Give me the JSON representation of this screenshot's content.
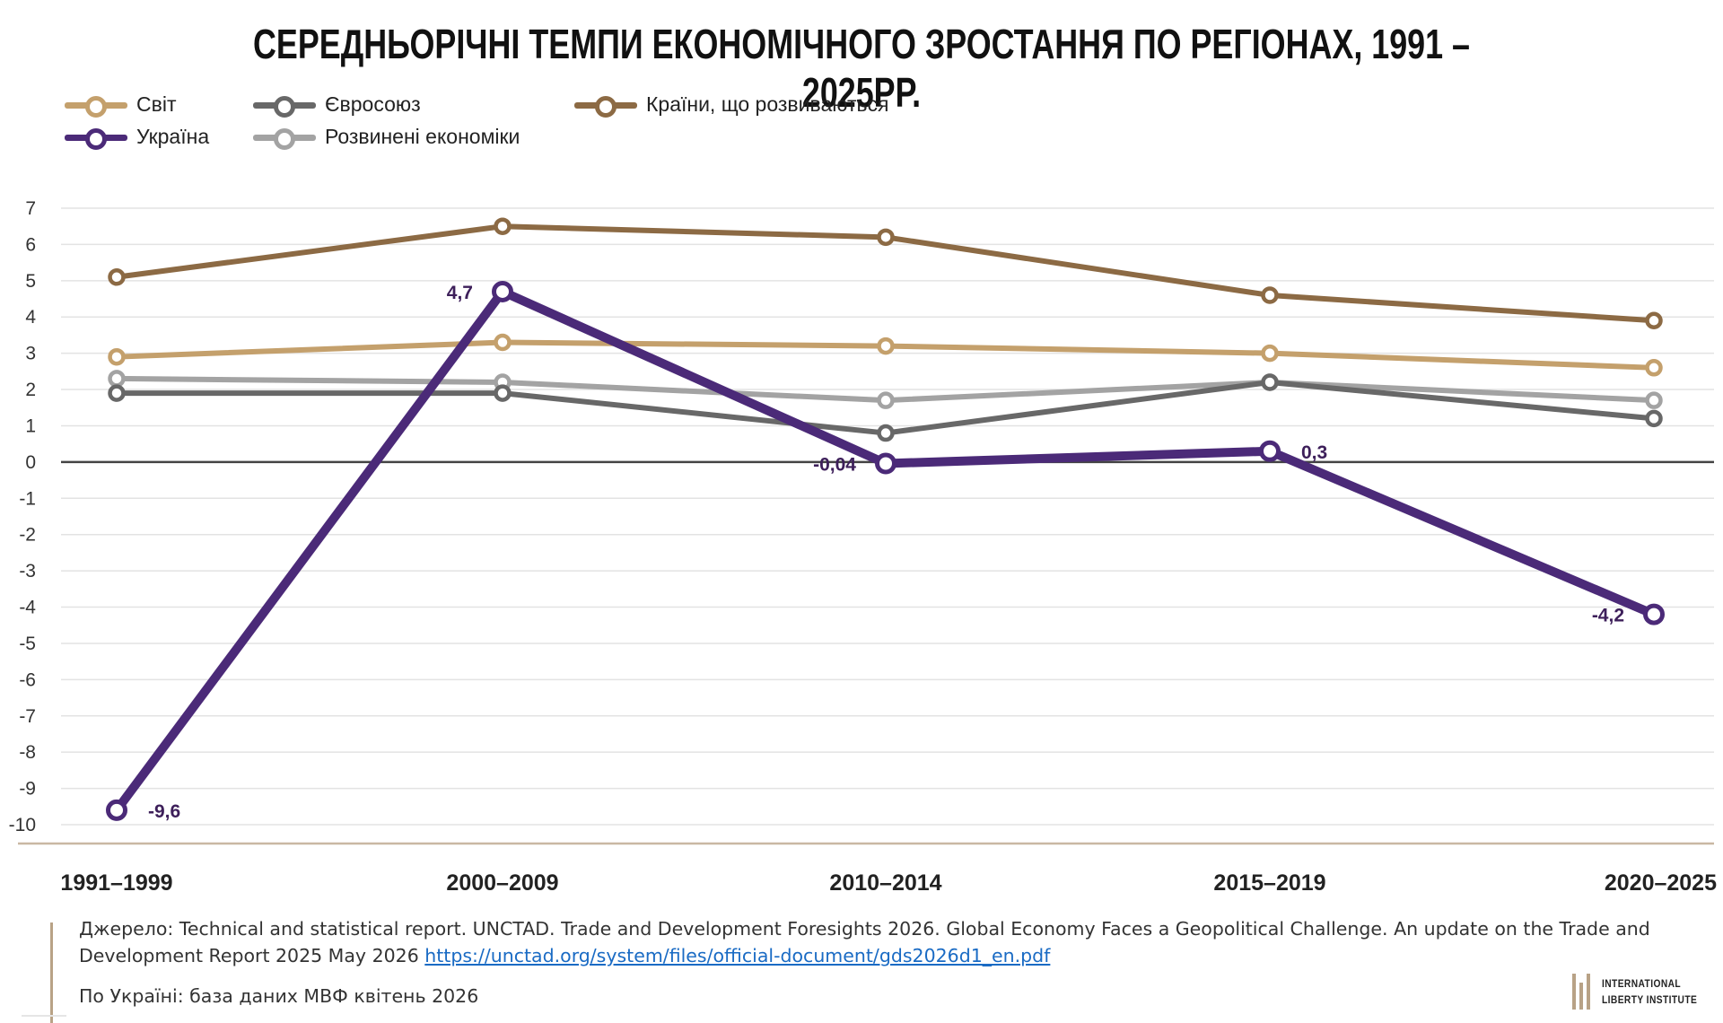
{
  "title": "СЕРЕДНЬОРІЧНІ ТЕМПИ ЕКОНОМІЧНОГО ЗРОСТАННЯ ПО РЕГІОНАХ, 1991 – 2025РР.",
  "legend": [
    {
      "name": "Світ",
      "color": "#c4a06c"
    },
    {
      "name": "Євросоюз",
      "color": "#686868"
    },
    {
      "name": "Країни, що розвиваються",
      "color": "#8c6a44"
    },
    {
      "name": "Україна",
      "color": "#4b2a78"
    },
    {
      "name": "Розвинені економіки",
      "color": "#a3a3a3"
    }
  ],
  "chart_data": {
    "type": "line",
    "categories": [
      "1991–1999",
      "2000–2009",
      "2010–2014",
      "2015–2019",
      "2020–2025"
    ],
    "ylim": [
      -10,
      7
    ],
    "yticks": [
      "7",
      "6",
      "5",
      "4",
      "3",
      "2",
      "1",
      "0",
      "-1",
      "-2",
      "-3",
      "-4",
      "-5",
      "-6",
      "-7",
      "-8",
      "-9",
      "-10"
    ],
    "grid": true,
    "legend_position": "top-left",
    "series": [
      {
        "name": "Світ",
        "color": "#c4a06c",
        "values": [
          2.9,
          3.3,
          3.2,
          3.0,
          2.6
        ]
      },
      {
        "name": "Євросоюз",
        "color": "#686868",
        "values": [
          1.9,
          1.9,
          0.8,
          2.2,
          1.2
        ]
      },
      {
        "name": "Країни, що розвиваються",
        "color": "#8c6a44",
        "values": [
          5.1,
          6.5,
          6.2,
          4.6,
          3.9
        ]
      },
      {
        "name": "Розвинені економіки",
        "color": "#a3a3a3",
        "values": [
          2.3,
          2.2,
          1.7,
          2.2,
          1.7
        ]
      },
      {
        "name": "Україна",
        "color": "#4b2a78",
        "values": [
          -9.6,
          4.7,
          -0.04,
          0.3,
          -4.2
        ],
        "labels": [
          "-9,6",
          "4,7",
          "-0,04",
          "0,3",
          "-4,2"
        ]
      }
    ]
  },
  "source": {
    "prefix": "Джерело: Technical and statistical report. UNCTAD. Trade and Development Foresights 2026. Global Economy Faces a Geopolitical Challenge. An update on the Trade and Development Report 2025 May 2026 ",
    "link": "https://unctad.org/system/files/official-document/gds2026d1_en.pdf",
    "ukraine_note": "По Україні: база даних МВФ квітень 2026"
  },
  "logo": {
    "line1": "INTERNATIONAL",
    "line2": "LIBERTY INSTITUTE",
    "color": "#b8a286"
  }
}
